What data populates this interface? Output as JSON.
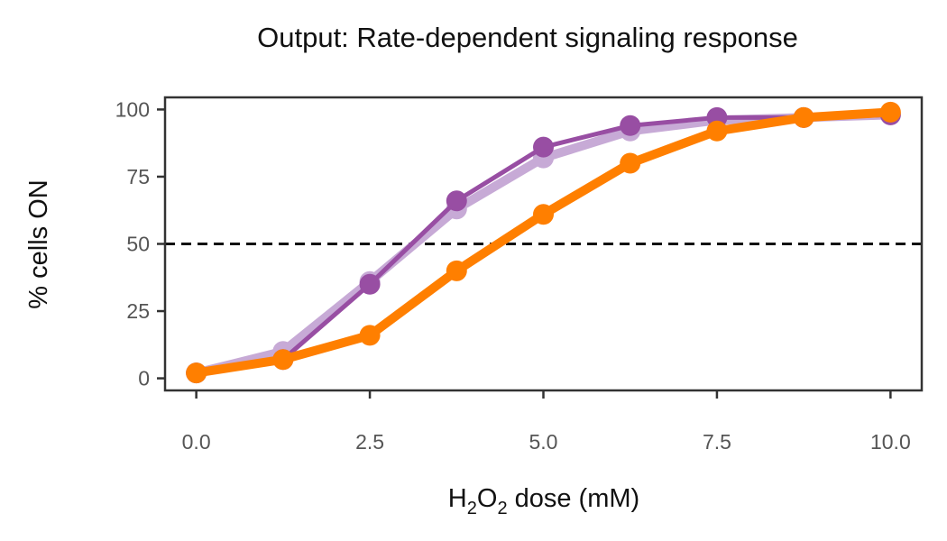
{
  "chart_data": {
    "type": "line",
    "title": "Output: Rate-dependent signaling response",
    "xlabel": {
      "prefix": "H",
      "sub1": "2",
      "mid": "O",
      "sub2": "2",
      "suffix": " dose (mM)"
    },
    "ylabel": "% cells ON",
    "xlim": [
      -0.45,
      10.45
    ],
    "ylim": [
      -4.5,
      104.5
    ],
    "xticks": [
      0,
      2.5,
      5,
      7.5,
      10
    ],
    "xtick_labels": [
      "0.0",
      "2.5",
      "5.0",
      "7.5",
      "10.0"
    ],
    "yticks": [
      0,
      25,
      50,
      75,
      100
    ],
    "ytick_labels": [
      "0",
      "25",
      "50",
      "75",
      "100"
    ],
    "grid": false,
    "legend": "none",
    "reference_line": {
      "y": 50,
      "style": "dashed",
      "color": "#111111"
    },
    "series": [
      {
        "color": "#c7aad6",
        "line_width": "thick",
        "x": [
          0,
          1.25,
          2.5,
          3.75,
          5,
          6.25,
          7.5,
          8.75,
          10
        ],
        "y": [
          2,
          10,
          36,
          63,
          82,
          92,
          96,
          97,
          98
        ]
      },
      {
        "color": "#984ea3",
        "line_width": "thin",
        "x": [
          0,
          1.25,
          2.5,
          3.75,
          5,
          6.25,
          7.5,
          8.75,
          10
        ],
        "y": [
          2,
          7,
          35,
          66,
          86,
          94,
          97,
          97,
          98
        ]
      },
      {
        "color": "#ff7f00",
        "line_width": "thick",
        "x": [
          0,
          1.25,
          2.5,
          3.75,
          5,
          6.25,
          7.5,
          8.75,
          10
        ],
        "y": [
          2,
          7,
          16,
          40,
          61,
          80,
          92,
          97,
          99
        ]
      }
    ]
  }
}
